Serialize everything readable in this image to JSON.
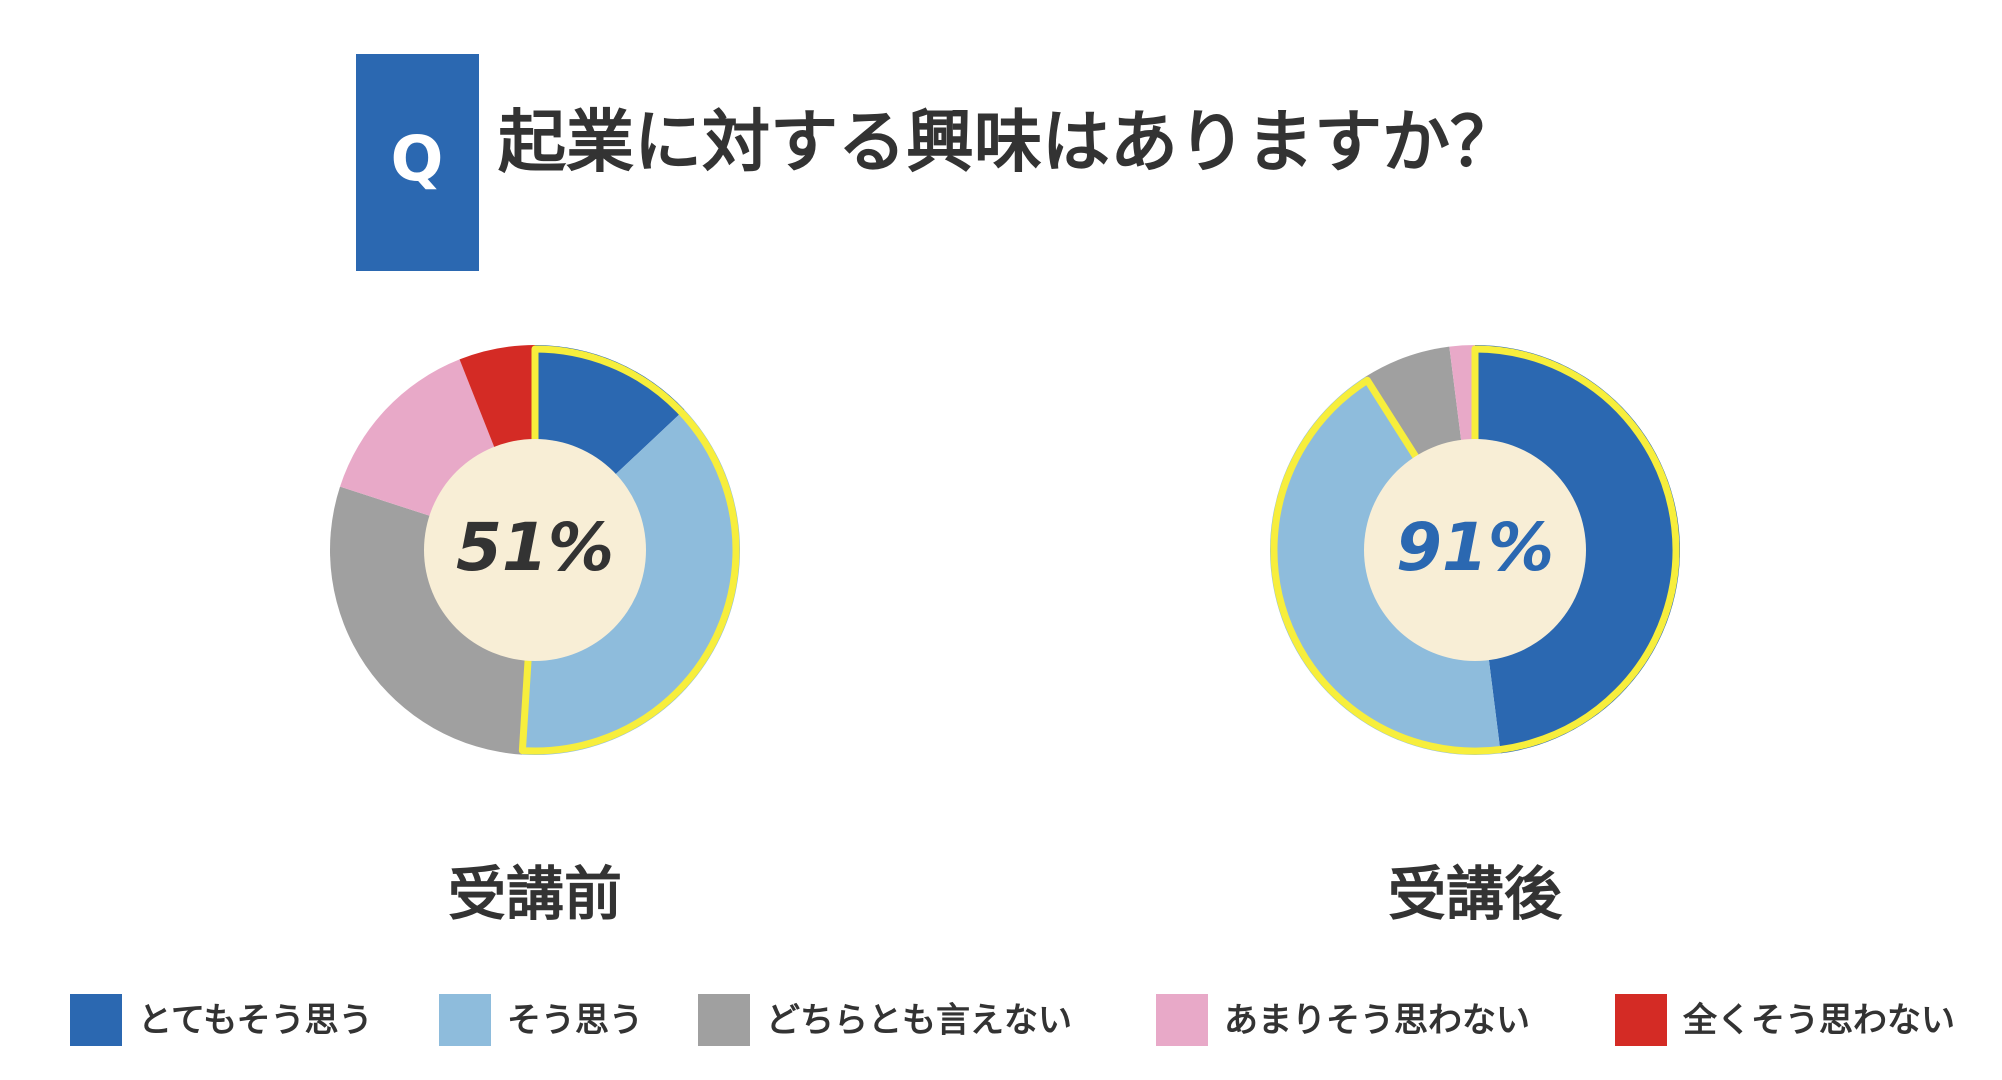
{
  "q_badge": "Q",
  "title": "起業に対する興味はありますか？",
  "legend": {
    "labels": [
      "とてもそう思う",
      "そう思う",
      "どちらとも言えない",
      "あまりそう思わない",
      "全くそう思わない"
    ],
    "colors": [
      "#2b68b1",
      "#8ebcdc",
      "#a0a0a0",
      "#e8a9c8",
      "#d42b25"
    ]
  },
  "chart_data": [
    {
      "type": "pie",
      "label": "受講前",
      "center_label": "51%",
      "center_color": "#333333",
      "values": [
        13,
        38,
        29,
        14,
        6
      ],
      "highlight": [
        0,
        1
      ]
    },
    {
      "type": "pie",
      "label": "受講後",
      "center_label": "91%",
      "center_color": "#2b68b1",
      "values": [
        48,
        43,
        7,
        2
      ],
      "highlight": [
        0,
        1
      ]
    }
  ]
}
